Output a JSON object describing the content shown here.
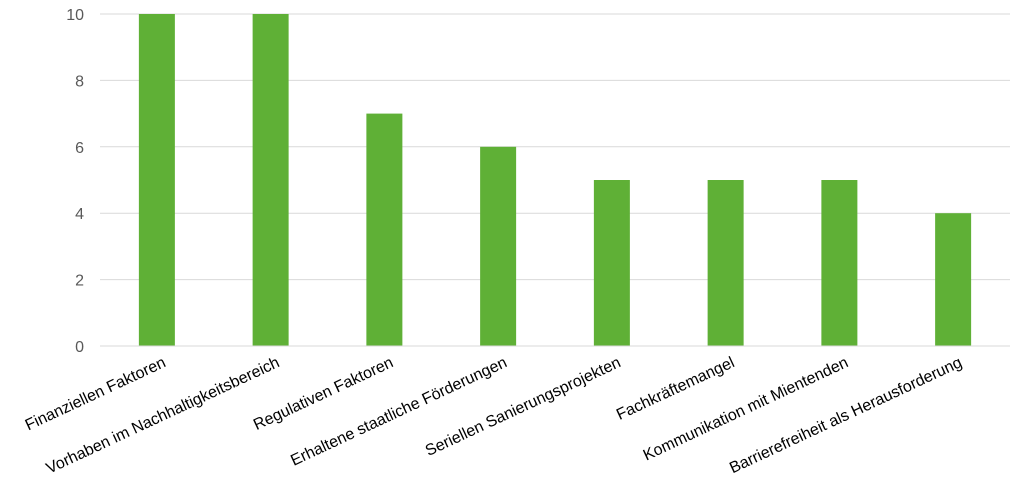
{
  "chart_data": {
    "type": "bar",
    "title": "",
    "xlabel": "",
    "ylabel": "",
    "categories": [
      "Finanziellen Faktoren",
      "Vorhaben im Nachhaltigkeitsbereich",
      "Regulativen Faktoren",
      "Erhaltene staatliche Förderungen",
      "Seriellen Sanierungsprojekten",
      "Fachkräftemangel",
      "Kommunikation mit Mientenden",
      "Barrierefreiheit als Herausforderung"
    ],
    "values": [
      10,
      10,
      7,
      6,
      5,
      5,
      5,
      4
    ],
    "ylim": [
      0,
      10
    ],
    "yticks": [
      0,
      2,
      4,
      6,
      8,
      10
    ],
    "grid": true,
    "legend": "none",
    "colors": {
      "bar": "#5fb036",
      "grid": "#d9d9d9",
      "axis": "#d9d9d9"
    }
  }
}
